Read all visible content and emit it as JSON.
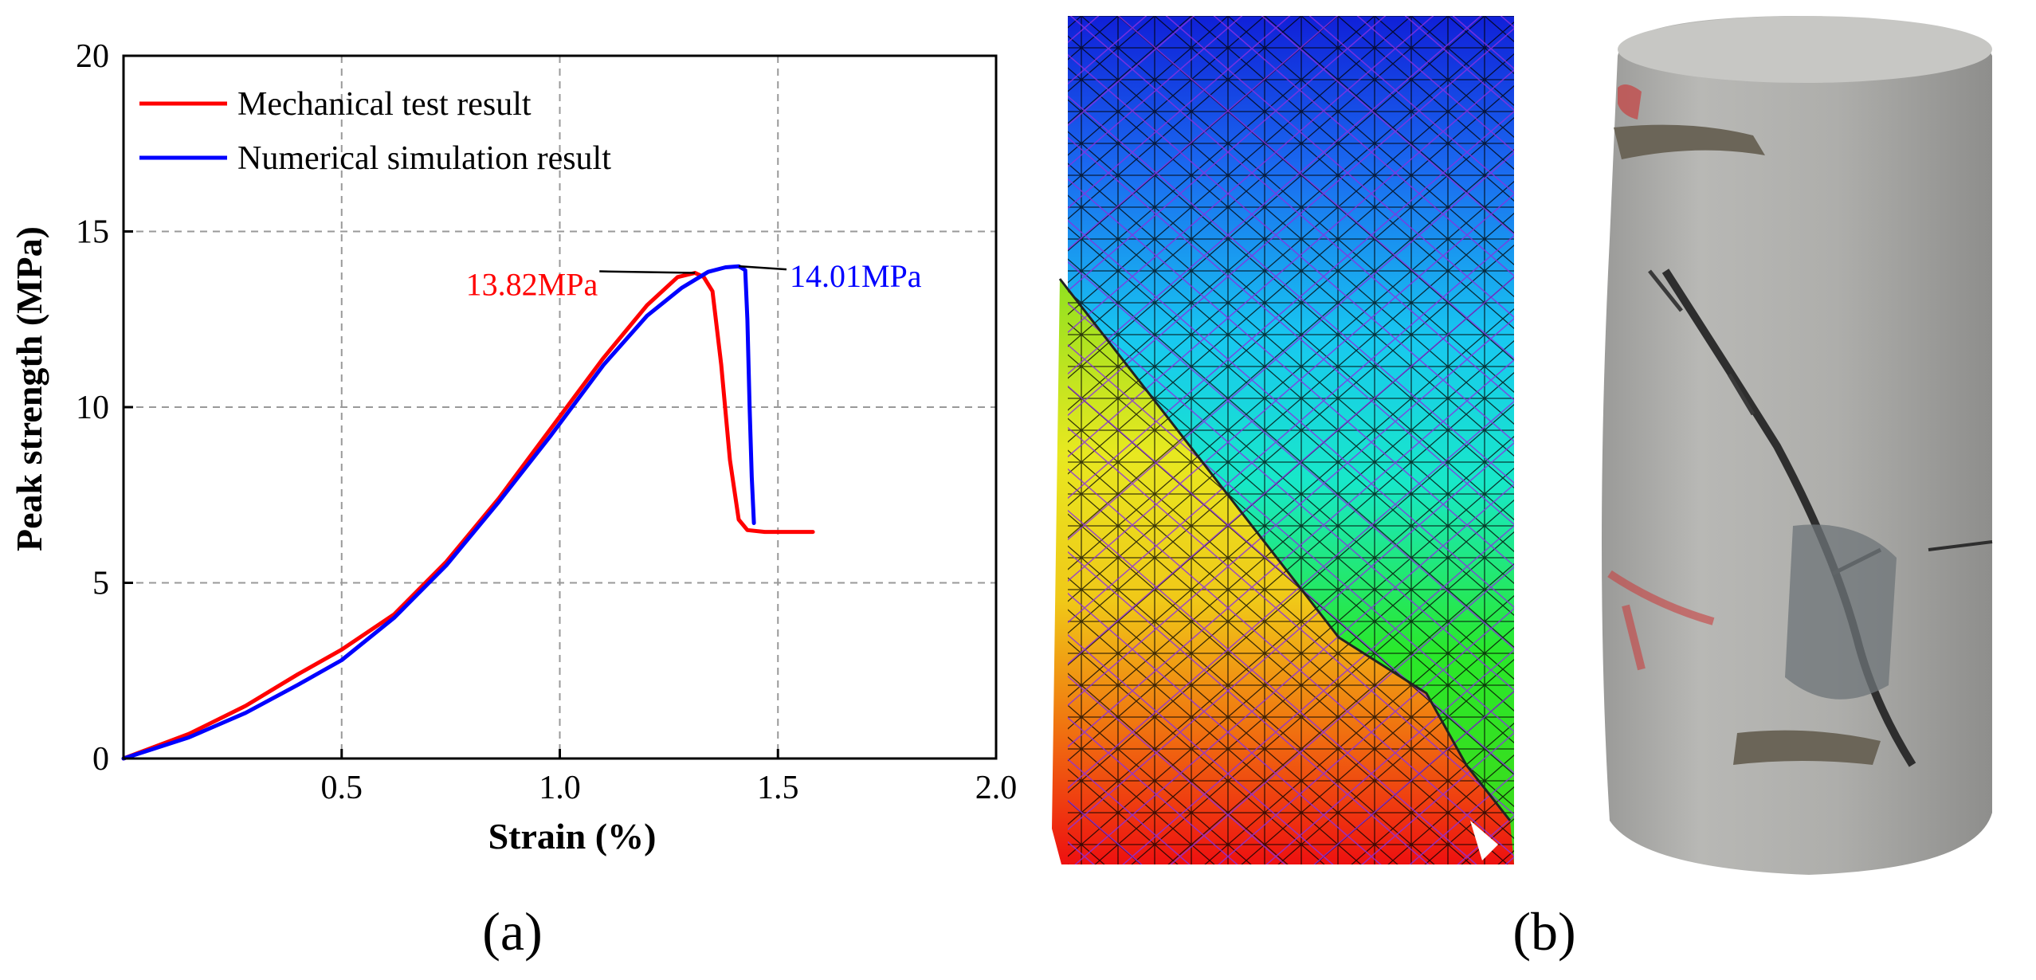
{
  "chart_data": {
    "type": "line",
    "xlabel": "Strain (%)",
    "ylabel": "Peak strength (MPa)",
    "xlim": [
      0,
      2.0
    ],
    "ylim": [
      0,
      20
    ],
    "x_ticks": [
      0.5,
      1.0,
      1.5,
      2.0
    ],
    "x_tick_labels": [
      "0.5",
      "1.0",
      "1.5",
      "2.0"
    ],
    "y_ticks": [
      0,
      5,
      10,
      15,
      20
    ],
    "y_tick_labels": [
      "0",
      "5",
      "10",
      "15",
      "20"
    ],
    "grid": true,
    "legend_position": "top-left",
    "series": [
      {
        "name": "Mechanical test result",
        "color": "#ff0000",
        "x": [
          0,
          0.15,
          0.28,
          0.4,
          0.5,
          0.62,
          0.74,
          0.86,
          0.98,
          1.1,
          1.2,
          1.27,
          1.31,
          1.33,
          1.35,
          1.37,
          1.39,
          1.41,
          1.43,
          1.47,
          1.58
        ],
        "y": [
          0,
          0.7,
          1.5,
          2.4,
          3.1,
          4.1,
          5.6,
          7.4,
          9.4,
          11.4,
          12.9,
          13.7,
          13.82,
          13.7,
          13.3,
          11.2,
          8.5,
          6.8,
          6.5,
          6.45,
          6.45
        ]
      },
      {
        "name": "Numerical simulation result",
        "color": "#0000ff",
        "x": [
          0,
          0.15,
          0.28,
          0.4,
          0.5,
          0.62,
          0.74,
          0.86,
          0.98,
          1.1,
          1.2,
          1.28,
          1.34,
          1.38,
          1.41,
          1.425,
          1.43,
          1.435,
          1.44,
          1.445
        ],
        "y": [
          0,
          0.6,
          1.3,
          2.1,
          2.8,
          4.0,
          5.5,
          7.3,
          9.2,
          11.2,
          12.6,
          13.4,
          13.85,
          13.98,
          14.01,
          13.9,
          12.5,
          10.0,
          8.0,
          6.7
        ]
      }
    ],
    "annotations": [
      {
        "text": "13.82MPa",
        "color": "#ff0000",
        "x": 1.31,
        "y": 13.82
      },
      {
        "text": "14.01MPa",
        "color": "#0000ff",
        "x": 1.41,
        "y": 14.01
      }
    ]
  },
  "panel_labels": {
    "a": "(a)",
    "b": "(b)"
  }
}
